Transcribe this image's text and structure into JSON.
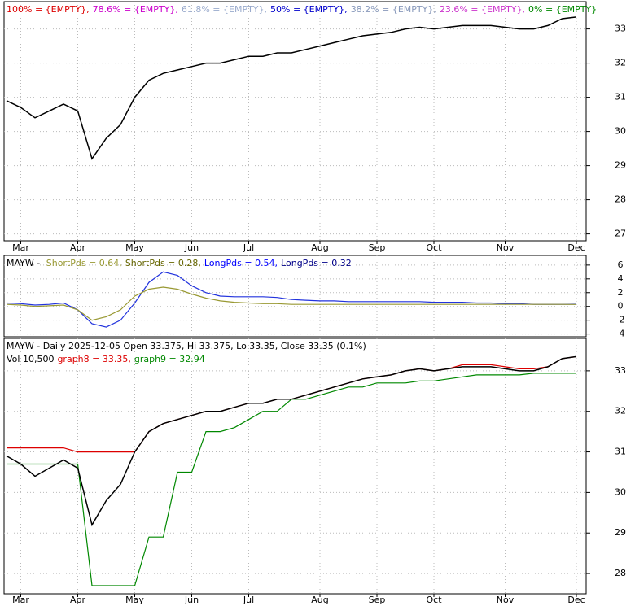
{
  "chart_data": [
    {
      "type": "line",
      "legend": [
        {
          "text": "100% = {EMPTY},",
          "color": "#dd0000"
        },
        {
          "text": "78.6% = {EMPTY},",
          "color": "#cc00cc"
        },
        {
          "text": "61.8% = {EMPTY},",
          "color": "#99aacc"
        },
        {
          "text": "50% = {EMPTY},",
          "color": "#0000cc"
        },
        {
          "text": "38.2% = {EMPTY},",
          "color": "#8899bb"
        },
        {
          "text": "23.6% = {EMPTY},",
          "color": "#cc33cc"
        },
        {
          "text": "0% = {EMPTY}",
          "color": "#008800"
        }
      ],
      "categories": [
        null,
        "Mar",
        null,
        null,
        null,
        "Apr",
        null,
        null,
        null,
        "May",
        null,
        null,
        null,
        "Jun",
        null,
        null,
        null,
        "Jul",
        null,
        null,
        null,
        null,
        "Aug",
        null,
        null,
        null,
        "Sep",
        null,
        null,
        null,
        "Oct",
        null,
        null,
        null,
        null,
        "Nov",
        null,
        null,
        null,
        null,
        "Dec"
      ],
      "series": [
        {
          "name": "MAYW",
          "color": "#000000",
          "values": [
            30.9,
            30.7,
            30.4,
            30.6,
            30.8,
            30.6,
            29.2,
            29.8,
            30.2,
            31.0,
            31.5,
            31.7,
            31.8,
            31.9,
            32.0,
            32.0,
            32.1,
            32.2,
            32.2,
            32.3,
            32.3,
            32.4,
            32.5,
            32.6,
            32.7,
            32.8,
            32.85,
            32.9,
            33.0,
            33.05,
            33.0,
            33.05,
            33.1,
            33.1,
            33.1,
            33.05,
            33.0,
            33.0,
            33.1,
            33.3,
            33.35
          ]
        }
      ],
      "ylim": [
        26.8,
        33.8
      ],
      "yticks": [
        27,
        28,
        29,
        30,
        31,
        32,
        33
      ],
      "grid": true
    },
    {
      "type": "line",
      "legend": [
        {
          "text": "MAYW - ",
          "color": "#000000"
        },
        {
          "text": "ShortPds = 0.64,",
          "color": "#999933"
        },
        {
          "text": "ShortPds = 0.28,",
          "color": "#666600"
        },
        {
          "text": "LongPds = 0.54,",
          "color": "#0000ff"
        },
        {
          "text": "LongPds = 0.32",
          "color": "#000088"
        }
      ],
      "series": [
        {
          "name": "LongPds",
          "color": "#2233dd",
          "values": [
            0.5,
            0.4,
            0.2,
            0.3,
            0.5,
            -0.5,
            -2.5,
            -3.0,
            -2.0,
            0.5,
            3.5,
            5.0,
            4.5,
            3.0,
            2.0,
            1.5,
            1.4,
            1.4,
            1.4,
            1.3,
            1.0,
            0.9,
            0.8,
            0.8,
            0.7,
            0.7,
            0.7,
            0.7,
            0.7,
            0.7,
            0.6,
            0.6,
            0.6,
            0.5,
            0.5,
            0.4,
            0.4,
            0.3,
            0.3,
            0.3,
            0.32
          ]
        },
        {
          "name": "ShortPds",
          "color": "#999933",
          "values": [
            0.3,
            0.2,
            0,
            0.1,
            0.2,
            -0.5,
            -2.0,
            -1.5,
            -0.5,
            1.5,
            2.5,
            2.8,
            2.5,
            1.8,
            1.2,
            0.8,
            0.6,
            0.5,
            0.4,
            0.4,
            0.3,
            0.3,
            0.3,
            0.3,
            0.3,
            0.3,
            0.3,
            0.3,
            0.3,
            0.3,
            0.3,
            0.3,
            0.3,
            0.3,
            0.3,
            0.3,
            0.3,
            0.3,
            0.3,
            0.3,
            0.28
          ]
        }
      ],
      "ylim": [
        -4.4,
        7.4
      ],
      "yticks": [
        -4,
        -2,
        0,
        2,
        4,
        6
      ],
      "grid": true
    },
    {
      "type": "line",
      "legend": [
        {
          "text": "MAYW - Daily 2025-12-05 Open 33.375, Hi 33.375, Lo 33.35, Close 33.35 (0.1%)",
          "color": "#000000"
        }
      ],
      "legend2": [
        {
          "text": "Vol 10,500",
          "color": "#000000"
        },
        {
          "text": "graph8 = 33.35,",
          "color": "#dd0000"
        },
        {
          "text": "graph9 = 32.94",
          "color": "#008800"
        }
      ],
      "categories": [
        null,
        "Mar",
        null,
        null,
        null,
        "Apr",
        null,
        null,
        null,
        "May",
        null,
        null,
        null,
        "Jun",
        null,
        null,
        null,
        "Jul",
        null,
        null,
        null,
        null,
        "Aug",
        null,
        null,
        null,
        "Sep",
        null,
        null,
        null,
        "Oct",
        null,
        null,
        null,
        null,
        "Nov",
        null,
        null,
        null,
        null,
        "Dec"
      ],
      "series": [
        {
          "name": "graph9",
          "color": "#008800",
          "values": [
            30.7,
            30.7,
            30.7,
            30.7,
            30.7,
            30.7,
            27.7,
            27.7,
            27.7,
            27.7,
            28.9,
            28.9,
            30.5,
            30.5,
            31.5,
            31.5,
            31.6,
            31.8,
            32.0,
            32.0,
            32.3,
            32.3,
            32.4,
            32.5,
            32.6,
            32.6,
            32.7,
            32.7,
            32.7,
            32.75,
            32.75,
            32.8,
            32.85,
            32.9,
            32.9,
            32.9,
            32.9,
            32.94,
            32.94,
            32.94,
            32.94
          ]
        },
        {
          "name": "graph8",
          "color": "#dd0000",
          "values": [
            31.1,
            31.1,
            31.1,
            31.1,
            31.1,
            31.0,
            31.0,
            31.0,
            31.0,
            31.0,
            31.5,
            31.7,
            31.8,
            31.9,
            32.0,
            32.0,
            32.1,
            32.2,
            32.2,
            32.3,
            32.3,
            32.4,
            32.5,
            32.6,
            32.7,
            32.8,
            32.85,
            32.9,
            33.0,
            33.05,
            33.0,
            33.05,
            33.15,
            33.15,
            33.15,
            33.1,
            33.05,
            33.05,
            33.1,
            33.3,
            33.35
          ]
        },
        {
          "name": "MAYW",
          "color": "#000000",
          "values": [
            30.9,
            30.7,
            30.4,
            30.6,
            30.8,
            30.6,
            29.2,
            29.8,
            30.2,
            31.0,
            31.5,
            31.7,
            31.8,
            31.9,
            32.0,
            32.0,
            32.1,
            32.2,
            32.2,
            32.3,
            32.3,
            32.4,
            32.5,
            32.6,
            32.7,
            32.8,
            32.85,
            32.9,
            33.0,
            33.05,
            33.0,
            33.05,
            33.1,
            33.1,
            33.1,
            33.05,
            33.0,
            33.0,
            33.1,
            33.3,
            33.35
          ]
        }
      ],
      "ylim": [
        27.5,
        33.8
      ],
      "yticks": [
        28,
        29,
        30,
        31,
        32,
        33
      ],
      "grid": true
    }
  ]
}
